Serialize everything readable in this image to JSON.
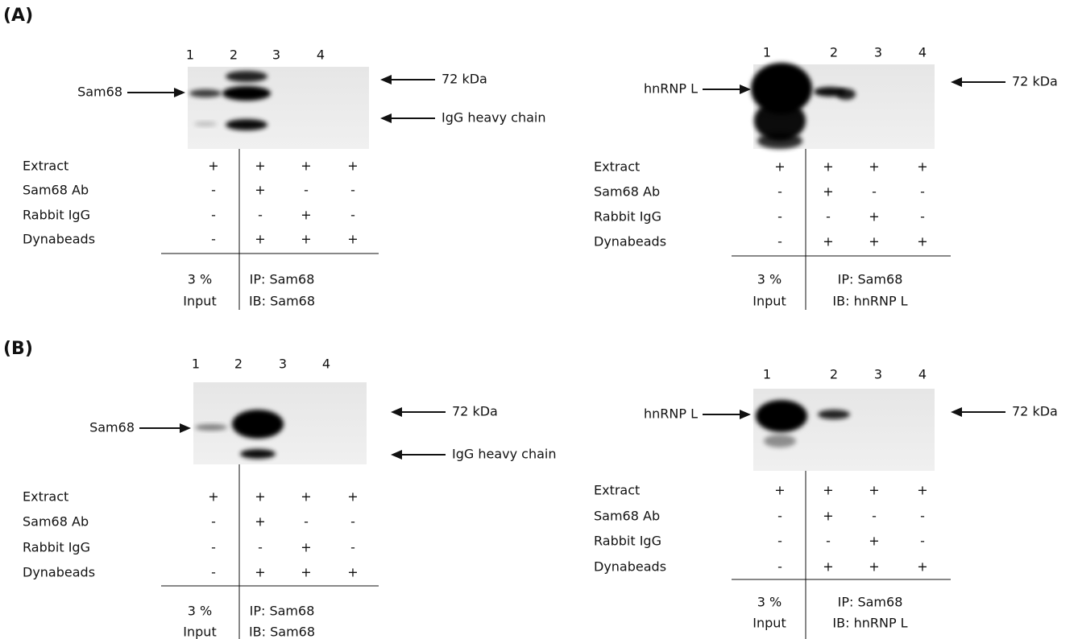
{
  "panels": [
    {
      "label": "(A)",
      "blots": [
        {
          "lanes": [
            "1",
            "2",
            "3",
            "4"
          ],
          "left_arrow": "Sam68",
          "right_arrows": [
            "72 kDa",
            "IgG heavy chain"
          ],
          "rows": [
            {
              "label": "Extract",
              "cells": [
                "+",
                "+",
                "+",
                "+"
              ]
            },
            {
              "label": "Sam68 Ab",
              "cells": [
                "-",
                "+",
                "-",
                "-"
              ]
            },
            {
              "label": "Rabbit IgG",
              "cells": [
                "-",
                "-",
                "+",
                "-"
              ]
            },
            {
              "label": "Dynabeads",
              "cells": [
                "-",
                "+",
                "+",
                "+"
              ]
            }
          ],
          "input": [
            "3 %",
            "Input"
          ],
          "ip": [
            "IP: Sam68",
            "IB: Sam68"
          ]
        },
        {
          "lanes": [
            "1",
            "2",
            "3",
            "4"
          ],
          "left_arrow": "hnRNP L",
          "right_arrows": [
            "72 kDa"
          ],
          "rows": [
            {
              "label": "Extract",
              "cells": [
                "+",
                "+",
                "+",
                "+"
              ]
            },
            {
              "label": "Sam68 Ab",
              "cells": [
                "-",
                "+",
                "-",
                "-"
              ]
            },
            {
              "label": "Rabbit IgG",
              "cells": [
                "-",
                "-",
                "+",
                "-"
              ]
            },
            {
              "label": "Dynabeads",
              "cells": [
                "-",
                "+",
                "+",
                "+"
              ]
            }
          ],
          "input": [
            "3 %",
            "Input"
          ],
          "ip": [
            "IP: Sam68",
            "IB: hnRNP L"
          ]
        }
      ]
    },
    {
      "label": "(B)",
      "blots": [
        {
          "lanes": [
            "1",
            "2",
            "3",
            "4"
          ],
          "left_arrow": "Sam68",
          "right_arrows": [
            "72 kDa",
            "IgG heavy chain"
          ],
          "rows": [
            {
              "label": "Extract",
              "cells": [
                "+",
                "+",
                "+",
                "+"
              ]
            },
            {
              "label": "Sam68 Ab",
              "cells": [
                "-",
                "+",
                "-",
                "-"
              ]
            },
            {
              "label": "Rabbit IgG",
              "cells": [
                "-",
                "-",
                "+",
                "-"
              ]
            },
            {
              "label": "Dynabeads",
              "cells": [
                "-",
                "+",
                "+",
                "+"
              ]
            }
          ],
          "input": [
            "3 %",
            "Input"
          ],
          "ip": [
            "IP: Sam68",
            "IB: Sam68"
          ]
        },
        {
          "lanes": [
            "1",
            "2",
            "3",
            "4"
          ],
          "left_arrow": "hnRNP L",
          "right_arrows": [
            "72 kDa"
          ],
          "rows": [
            {
              "label": "Extract",
              "cells": [
                "+",
                "+",
                "+",
                "+"
              ]
            },
            {
              "label": "Sam68 Ab",
              "cells": [
                "-",
                "+",
                "-",
                "-"
              ]
            },
            {
              "label": "Rabbit IgG",
              "cells": [
                "-",
                "-",
                "+",
                "-"
              ]
            },
            {
              "label": "Dynabeads",
              "cells": [
                "-",
                "+",
                "+",
                "+"
              ]
            }
          ],
          "input": [
            "3 %",
            "Input"
          ],
          "ip": [
            "IP: Sam68",
            "IB: hnRNP L"
          ]
        }
      ]
    }
  ]
}
